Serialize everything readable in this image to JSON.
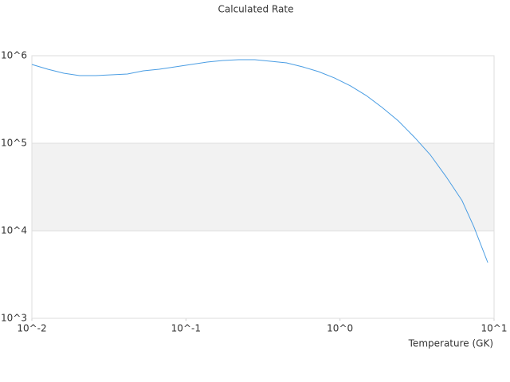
{
  "chart_data": {
    "type": "line",
    "title": "Calculated Rate",
    "x_label": "Temperature (GK)",
    "x": [
      0.01,
      0.0127,
      0.0161,
      0.0204,
      0.0259,
      0.0329,
      0.0417,
      0.0529,
      0.067,
      0.0852,
      0.108,
      0.137,
      0.174,
      0.22,
      0.28,
      0.355,
      0.45,
      0.572,
      0.726,
      0.92,
      1.17,
      1.48,
      1.88,
      2.39,
      3.03,
      3.85,
      4.88,
      6.19,
      7.4,
      9.1
    ],
    "values": [
      794000,
      700000,
      631000,
      593000,
      593000,
      605000,
      618000,
      672000,
      700000,
      746000,
      794000,
      846000,
      882000,
      900000,
      900000,
      864000,
      828000,
      746000,
      658000,
      557000,
      452000,
      351000,
      256000,
      180000,
      118000,
      74000,
      41600,
      22200,
      11100,
      4340
    ],
    "color": "#4a9de3",
    "x_log": true,
    "y_log": true,
    "xlim": [
      0.01,
      10
    ],
    "ylim": [
      1000,
      1000000
    ],
    "xticks": [
      {
        "value": 0.01,
        "label": "10^-2"
      },
      {
        "value": 0.1,
        "label": "10^-1"
      },
      {
        "value": 1,
        "label": "10^0"
      },
      {
        "value": 10,
        "label": "10^1"
      }
    ],
    "yticks": [
      {
        "value": 1000,
        "label": "10^3"
      },
      {
        "value": 10000,
        "label": "10^4"
      },
      {
        "value": 100000,
        "label": "10^5"
      },
      {
        "value": 1000000,
        "label": "10^6"
      }
    ],
    "grid": true,
    "alternate_bands": true
  }
}
